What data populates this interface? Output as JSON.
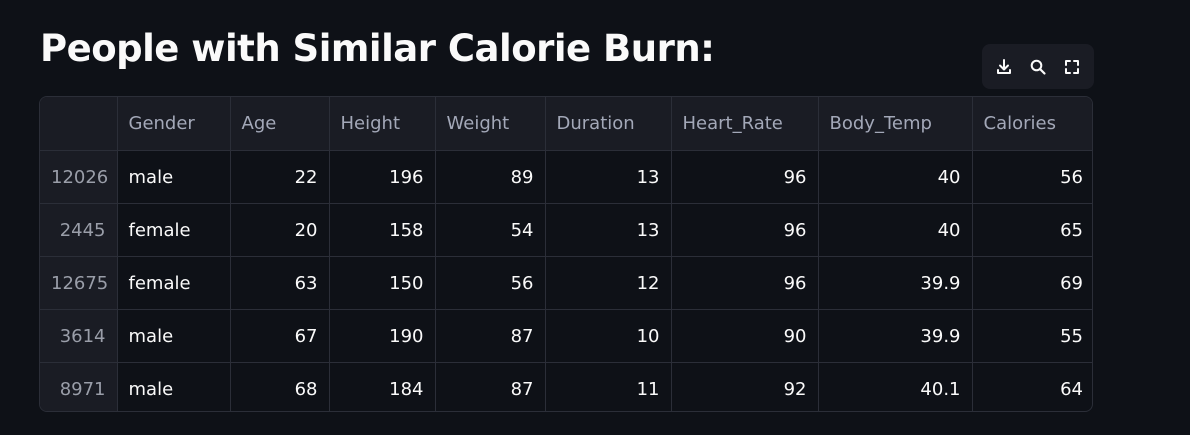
{
  "title": "People with Similar Calorie Burn:",
  "toolbar": {
    "icons": [
      "download-icon",
      "search-icon",
      "fullscreen-icon"
    ]
  },
  "table": {
    "columns": [
      "",
      "Gender",
      "Age",
      "Height",
      "Weight",
      "Duration",
      "Heart_Rate",
      "Body_Temp",
      "Calories"
    ],
    "rows": [
      [
        "12026",
        "male",
        "22",
        "196",
        "89",
        "13",
        "96",
        "40",
        "56"
      ],
      [
        "2445",
        "female",
        "20",
        "158",
        "54",
        "13",
        "96",
        "40",
        "65"
      ],
      [
        "12675",
        "female",
        "63",
        "150",
        "56",
        "12",
        "96",
        "39.9",
        "69"
      ],
      [
        "3614",
        "male",
        "67",
        "190",
        "87",
        "10",
        "90",
        "39.9",
        "55"
      ],
      [
        "8971",
        "male",
        "68",
        "184",
        "87",
        "11",
        "92",
        "40.1",
        "64"
      ]
    ]
  },
  "colors": {
    "background": "#0e1117",
    "header_background": "#1a1c24",
    "border": "#2b2e38",
    "text": "#fafafa",
    "muted_text": "#a3a8b8"
  }
}
